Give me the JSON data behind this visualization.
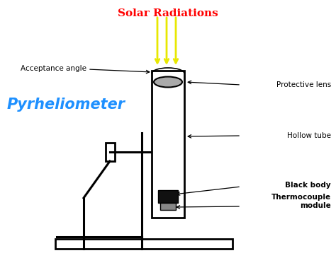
{
  "title": "Solar Radiations",
  "title_color": "red",
  "label_pyrheliometer": "Pyrheliometer",
  "label_pyrheliometer_color": "#1e90ff",
  "label_acceptance": "Acceptance angle",
  "label_protective_lens": "Protective lens",
  "label_hollow_tube": "Hollow tube",
  "label_black_body": "Black body",
  "label_thermocouple": "Thermocouple\nmodule",
  "bg_color": "white",
  "yellow_arrow_color": "#e8e800",
  "gray_line_color": "#888888",
  "black_body_color": "#111111",
  "thermocouple_color": "#888888"
}
